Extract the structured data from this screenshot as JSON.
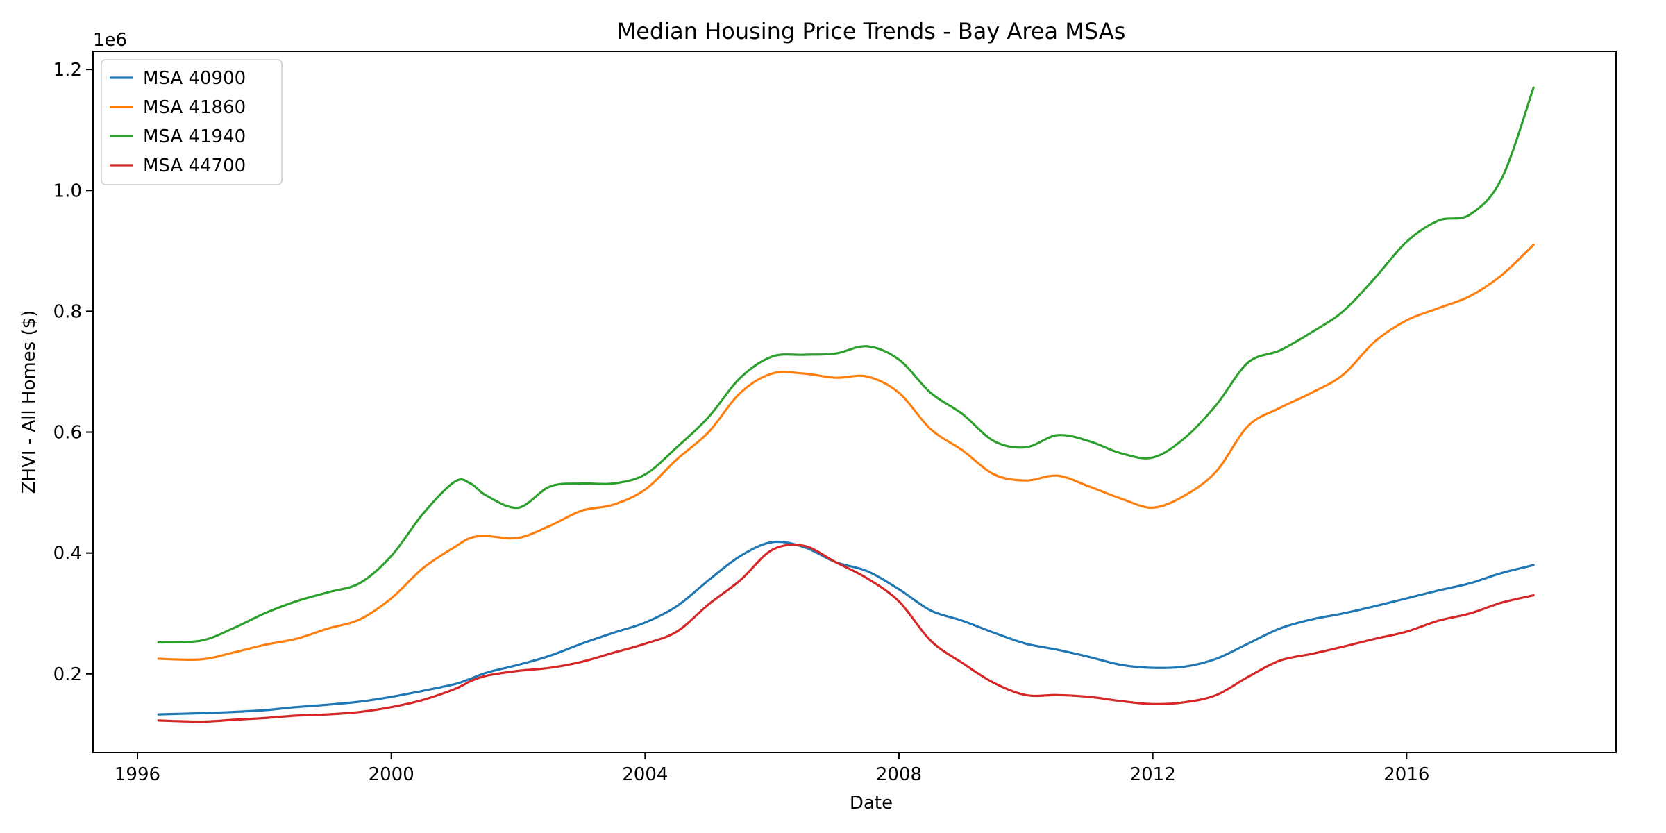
{
  "chart_data": {
    "type": "line",
    "title": "Median Housing Price Trends - Bay Area MSAs",
    "xlabel": "Date",
    "ylabel": "ZHVI - All Homes ($)",
    "y_offset_label": "1e6",
    "xlim": [
      1995.3,
      2019.3
    ],
    "ylim": [
      70000,
      1230000
    ],
    "x_ticks": [
      1996,
      2000,
      2004,
      2008,
      2012,
      2016
    ],
    "x_tick_labels": [
      "1996",
      "2000",
      "2004",
      "2008",
      "2012",
      "2016"
    ],
    "y_ticks": [
      200000,
      400000,
      600000,
      800000,
      1000000,
      1200000
    ],
    "y_tick_labels": [
      "0.2",
      "0.4",
      "0.6",
      "0.8",
      "1.0",
      "1.2"
    ],
    "grid": false,
    "legend_position": "top-left",
    "x": [
      1996.33,
      1997.0,
      1997.5,
      1998.0,
      1998.5,
      1999.0,
      1999.5,
      2000.0,
      2000.5,
      2001.0,
      2001.25,
      2001.5,
      2002.0,
      2002.5,
      2003.0,
      2003.5,
      2004.0,
      2004.5,
      2005.0,
      2005.5,
      2006.0,
      2006.5,
      2007.0,
      2007.5,
      2008.0,
      2008.5,
      2009.0,
      2009.5,
      2010.0,
      2010.5,
      2011.0,
      2011.5,
      2012.0,
      2012.5,
      2013.0,
      2013.5,
      2014.0,
      2014.5,
      2015.0,
      2015.5,
      2016.0,
      2016.5,
      2017.0,
      2017.5,
      2018.0
    ],
    "series": [
      {
        "name": "MSA 40900",
        "color": "#1f77b4",
        "values": [
          133000,
          135000,
          137000,
          140000,
          145000,
          149000,
          154000,
          162000,
          172000,
          183000,
          192000,
          202000,
          215000,
          230000,
          250000,
          268000,
          285000,
          312000,
          355000,
          395000,
          418000,
          410000,
          385000,
          370000,
          340000,
          305000,
          288000,
          268000,
          250000,
          240000,
          228000,
          215000,
          210000,
          212000,
          225000,
          250000,
          275000,
          290000,
          300000,
          312000,
          325000,
          338000,
          350000,
          367000,
          380000
        ]
      },
      {
        "name": "MSA 41860",
        "color": "#ff7f0e",
        "values": [
          225000,
          224000,
          235000,
          248000,
          258000,
          275000,
          290000,
          325000,
          375000,
          410000,
          425000,
          428000,
          425000,
          445000,
          470000,
          480000,
          505000,
          555000,
          600000,
          665000,
          697000,
          697000,
          690000,
          692000,
          665000,
          605000,
          570000,
          530000,
          520000,
          528000,
          510000,
          490000,
          475000,
          495000,
          535000,
          610000,
          640000,
          665000,
          695000,
          750000,
          785000,
          805000,
          825000,
          860000,
          910000
        ]
      },
      {
        "name": "MSA 41940",
        "color": "#2ca02c",
        "values": [
          252000,
          255000,
          275000,
          300000,
          320000,
          335000,
          350000,
          395000,
          465000,
          518000,
          515000,
          495000,
          475000,
          510000,
          515000,
          515000,
          530000,
          575000,
          625000,
          690000,
          725000,
          728000,
          730000,
          742000,
          720000,
          665000,
          630000,
          585000,
          575000,
          595000,
          585000,
          565000,
          558000,
          590000,
          645000,
          715000,
          735000,
          765000,
          800000,
          855000,
          915000,
          950000,
          960000,
          1020000,
          1170000
        ]
      },
      {
        "name": "MSA 44700",
        "color": "#d62728",
        "values": [
          123000,
          121000,
          124000,
          127000,
          131000,
          133000,
          137000,
          145000,
          157000,
          175000,
          188000,
          197000,
          205000,
          210000,
          220000,
          235000,
          250000,
          270000,
          315000,
          355000,
          405000,
          412000,
          385000,
          358000,
          320000,
          255000,
          218000,
          185000,
          165000,
          165000,
          162000,
          155000,
          150000,
          153000,
          165000,
          195000,
          222000,
          233000,
          245000,
          258000,
          270000,
          288000,
          300000,
          318000,
          330000
        ]
      }
    ]
  }
}
